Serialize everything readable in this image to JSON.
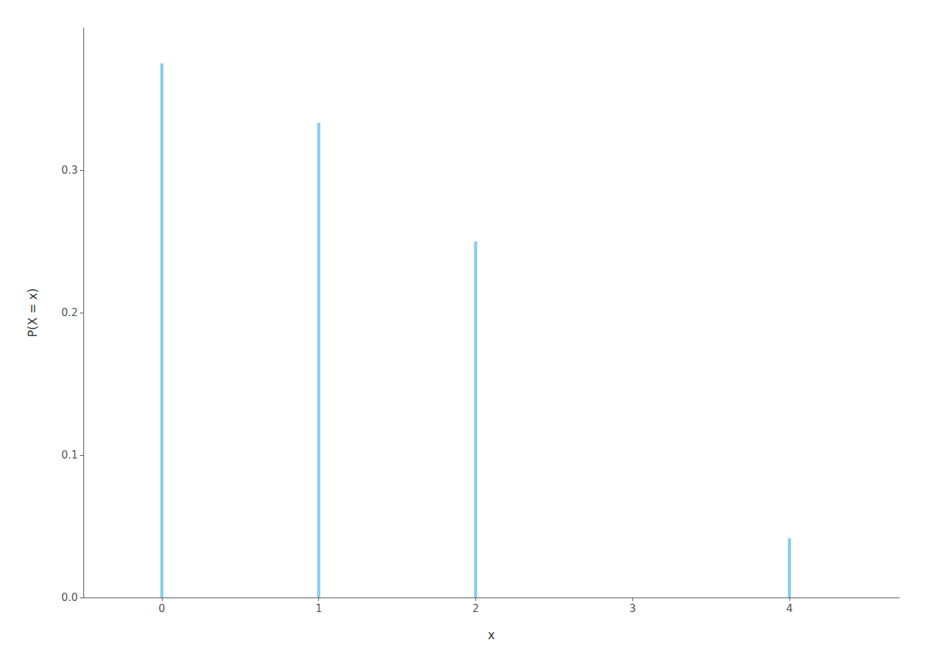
{
  "chart_data": {
    "type": "stem",
    "x": [
      0,
      1,
      2,
      3,
      4
    ],
    "values": [
      0.375,
      0.333333,
      0.25,
      0.0,
      0.041667
    ],
    "color": "#87CEEB",
    "xlabel": "x",
    "ylabel": "P(X = x)",
    "xlim": [
      -0.5,
      4.7
    ],
    "ylim": [
      0,
      0.4
    ],
    "xticks": [
      0,
      1,
      2,
      3,
      4
    ],
    "yticks": [
      {
        "value": 0.0,
        "label": "0.0"
      },
      0.1,
      0.2,
      0.3
    ],
    "grid": false
  }
}
